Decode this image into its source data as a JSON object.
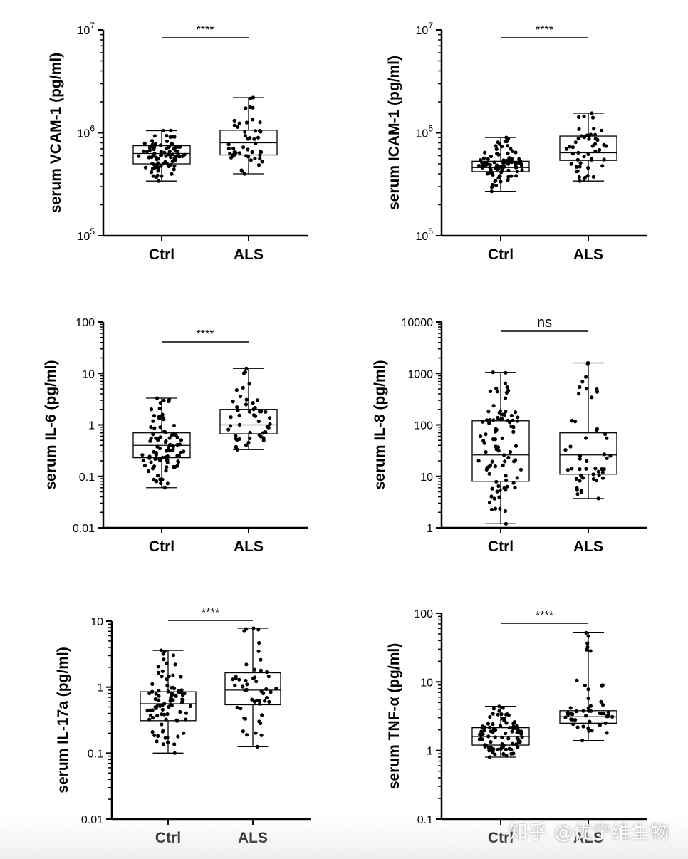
{
  "chart_data": [
    {
      "type": "box",
      "ylabel": "serum VCAM-1 (pg/ml)",
      "yscale": "log",
      "ylim": [
        100000,
        10000000
      ],
      "yticks": [
        {
          "value": 100000,
          "base": "10",
          "exp": "5"
        },
        {
          "value": 1000000,
          "base": "10",
          "exp": "6"
        },
        {
          "value": 10000000,
          "base": "10",
          "exp": "7"
        }
      ],
      "categories": [
        "Ctrl",
        "ALS"
      ],
      "boxes": [
        {
          "name": "Ctrl",
          "min": 340000,
          "q1": 500000,
          "median": 630000,
          "q3": 750000,
          "max": 1050000,
          "n": 90
        },
        {
          "name": "ALS",
          "min": 400000,
          "q1": 610000,
          "median": 800000,
          "q3": 1060000,
          "max": 2200000,
          "n": 50
        }
      ],
      "significance": "****"
    },
    {
      "type": "box",
      "ylabel": "serum ICAM-1 (pg/ml)",
      "yscale": "log",
      "ylim": [
        100000,
        10000000
      ],
      "yticks": [
        {
          "value": 100000,
          "base": "10",
          "exp": "5"
        },
        {
          "value": 1000000,
          "base": "10",
          "exp": "6"
        },
        {
          "value": 10000000,
          "base": "10",
          "exp": "7"
        }
      ],
      "categories": [
        "Ctrl",
        "ALS"
      ],
      "boxes": [
        {
          "name": "Ctrl",
          "min": 270000,
          "q1": 420000,
          "median": 460000,
          "q3": 530000,
          "max": 900000,
          "n": 90
        },
        {
          "name": "ALS",
          "min": 340000,
          "q1": 540000,
          "median": 640000,
          "q3": 930000,
          "max": 1550000,
          "n": 50
        }
      ],
      "significance": "****"
    },
    {
      "type": "box",
      "ylabel": "serum IL-6 (pg/ml)",
      "yscale": "log",
      "ylim": [
        0.01,
        100
      ],
      "yticks": [
        {
          "value": 0.01,
          "label": "0.01"
        },
        {
          "value": 0.1,
          "label": "0.1"
        },
        {
          "value": 1,
          "label": "1"
        },
        {
          "value": 10,
          "label": "10"
        },
        {
          "value": 100,
          "label": "100"
        }
      ],
      "categories": [
        "Ctrl",
        "ALS"
      ],
      "boxes": [
        {
          "name": "Ctrl",
          "min": 0.06,
          "q1": 0.23,
          "median": 0.4,
          "q3": 0.7,
          "max": 3.3,
          "n": 90
        },
        {
          "name": "ALS",
          "min": 0.33,
          "q1": 0.67,
          "median": 1.0,
          "q3": 2.0,
          "max": 12.5,
          "n": 50
        }
      ],
      "significance": "****"
    },
    {
      "type": "box",
      "ylabel": "serum IL-8 (pg/ml)",
      "yscale": "log",
      "ylim": [
        1,
        10000
      ],
      "yticks": [
        {
          "value": 1,
          "label": "1"
        },
        {
          "value": 10,
          "label": "10"
        },
        {
          "value": 100,
          "label": "100"
        },
        {
          "value": 1000,
          "label": "1000"
        },
        {
          "value": 10000,
          "label": "10000"
        }
      ],
      "categories": [
        "Ctrl",
        "ALS"
      ],
      "boxes": [
        {
          "name": "Ctrl",
          "min": 1.2,
          "q1": 8,
          "median": 26,
          "q3": 120,
          "max": 1050,
          "n": 90
        },
        {
          "name": "ALS",
          "min": 3.7,
          "q1": 11,
          "median": 26,
          "q3": 70,
          "max": 1600,
          "n": 50
        }
      ],
      "significance": "ns"
    },
    {
      "type": "box",
      "ylabel": "serum IL-17a (pg/ml)",
      "yscale": "log",
      "ylim": [
        0.01,
        10
      ],
      "yticks": [
        {
          "value": 0.01,
          "label": "0.01"
        },
        {
          "value": 0.1,
          "label": "0.1"
        },
        {
          "value": 1,
          "label": "1"
        },
        {
          "value": 10,
          "label": "10"
        }
      ],
      "categories": [
        "Ctrl",
        "ALS"
      ],
      "boxes": [
        {
          "name": "Ctrl",
          "min": 0.1,
          "q1": 0.31,
          "median": 0.56,
          "q3": 0.85,
          "max": 3.6,
          "n": 90
        },
        {
          "name": "ALS",
          "min": 0.125,
          "q1": 0.54,
          "median": 0.9,
          "q3": 1.65,
          "max": 7.8,
          "n": 50
        }
      ],
      "significance": "****"
    },
    {
      "type": "box",
      "ylabel": "serum TNF-α (pg/ml)",
      "yscale": "log",
      "ylim": [
        0.1,
        100
      ],
      "yticks": [
        {
          "value": 0.1,
          "label": "0.1"
        },
        {
          "value": 1,
          "label": "1"
        },
        {
          "value": 10,
          "label": "10"
        },
        {
          "value": 100,
          "label": "100"
        }
      ],
      "categories": [
        "Ctrl",
        "ALS"
      ],
      "boxes": [
        {
          "name": "Ctrl",
          "min": 0.8,
          "q1": 1.2,
          "median": 1.6,
          "q3": 2.15,
          "max": 4.4,
          "n": 90
        },
        {
          "name": "ALS",
          "min": 1.4,
          "q1": 2.5,
          "median": 3.1,
          "q3": 3.8,
          "max": 52,
          "n": 50
        }
      ],
      "significance": "****"
    }
  ],
  "watermark": "知乎 @优宁维生物"
}
